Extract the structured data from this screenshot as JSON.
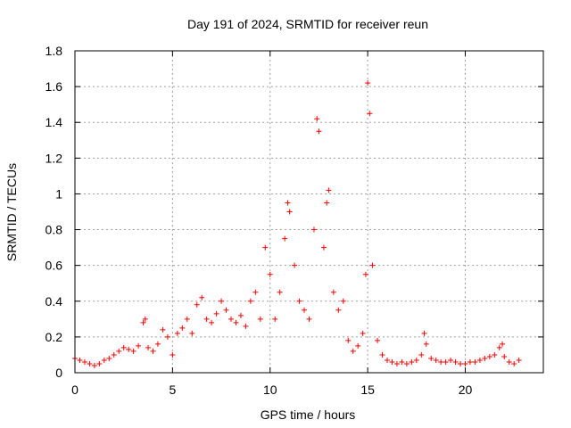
{
  "chart_data": {
    "type": "scatter",
    "title": "Day 191 of 2024, SRMTID for receiver reun",
    "xlabel": "GPS time / hours",
    "ylabel": "SRMTID / TECUs",
    "xlim": [
      0,
      24
    ],
    "ylim": [
      0,
      1.8
    ],
    "x_ticks": [
      0,
      5,
      10,
      15,
      20
    ],
    "y_ticks": [
      0,
      0.2,
      0.4,
      0.6,
      0.8,
      1,
      1.2,
      1.4,
      1.6,
      1.8
    ],
    "x_tick_labels": [
      "0",
      "5",
      "10",
      "15",
      "20"
    ],
    "y_tick_labels": [
      "0",
      "0.2",
      "0.4",
      "0.6",
      "0.8",
      "1",
      "1.2",
      "1.4",
      "1.6",
      "1.8"
    ],
    "grid": true,
    "marker": "+",
    "marker_color": "#ff0000",
    "series": [
      {
        "name": "SRMTID",
        "x": [
          0.0,
          0.25,
          0.5,
          0.75,
          1.0,
          1.25,
          1.5,
          1.75,
          2.0,
          2.25,
          2.5,
          2.75,
          3.0,
          3.25,
          3.5,
          3.6,
          3.75,
          4.0,
          4.25,
          4.5,
          4.75,
          5.0,
          5.25,
          5.5,
          5.75,
          6.0,
          6.25,
          6.5,
          6.75,
          7.0,
          7.25,
          7.5,
          7.75,
          8.0,
          8.25,
          8.5,
          8.75,
          9.0,
          9.25,
          9.5,
          9.75,
          10.0,
          10.25,
          10.5,
          10.75,
          10.9,
          11.0,
          11.25,
          11.5,
          11.75,
          12.0,
          12.25,
          12.4,
          12.5,
          12.75,
          12.9,
          13.0,
          13.25,
          13.5,
          13.75,
          14.0,
          14.25,
          14.5,
          14.75,
          14.9,
          15.0,
          15.1,
          15.25,
          15.5,
          15.75,
          16.0,
          16.25,
          16.5,
          16.75,
          17.0,
          17.25,
          17.5,
          17.75,
          17.9,
          18.0,
          18.25,
          18.5,
          18.75,
          19.0,
          19.25,
          19.5,
          19.75,
          20.0,
          20.25,
          20.5,
          20.75,
          21.0,
          21.25,
          21.5,
          21.75,
          21.9,
          22.0,
          22.25,
          22.5,
          22.75
        ],
        "y": [
          0.08,
          0.07,
          0.06,
          0.05,
          0.04,
          0.05,
          0.07,
          0.08,
          0.1,
          0.12,
          0.14,
          0.13,
          0.12,
          0.15,
          0.28,
          0.3,
          0.14,
          0.12,
          0.16,
          0.24,
          0.2,
          0.1,
          0.22,
          0.25,
          0.3,
          0.22,
          0.38,
          0.42,
          0.3,
          0.28,
          0.33,
          0.4,
          0.35,
          0.3,
          0.28,
          0.32,
          0.26,
          0.4,
          0.45,
          0.3,
          0.7,
          0.55,
          0.3,
          0.45,
          0.75,
          0.95,
          0.9,
          0.6,
          0.4,
          0.35,
          0.3,
          0.8,
          1.42,
          1.35,
          0.7,
          0.95,
          1.02,
          0.45,
          0.35,
          0.4,
          0.18,
          0.12,
          0.15,
          0.22,
          0.55,
          1.62,
          1.45,
          0.6,
          0.18,
          0.1,
          0.07,
          0.06,
          0.05,
          0.06,
          0.05,
          0.06,
          0.07,
          0.1,
          0.22,
          0.16,
          0.08,
          0.07,
          0.06,
          0.06,
          0.07,
          0.06,
          0.05,
          0.05,
          0.06,
          0.06,
          0.07,
          0.08,
          0.09,
          0.1,
          0.14,
          0.16,
          0.09,
          0.06,
          0.05,
          0.07
        ]
      }
    ]
  }
}
